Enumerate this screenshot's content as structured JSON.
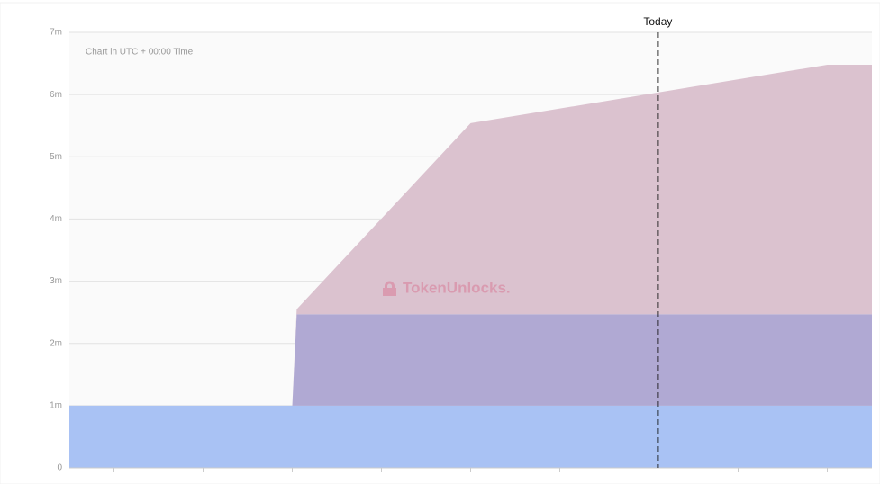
{
  "chart_data": {
    "type": "stacked-area",
    "subtitle": "Chart in UTC + 00:00 Time",
    "watermark": "TokenUnlocks.",
    "x": [
      0.5,
      3.0,
      3.05,
      5.0,
      9.0,
      9.5
    ],
    "xlim": [
      0.5,
      9.5
    ],
    "xticks": [
      1,
      2,
      3,
      4,
      5,
      6,
      7,
      8,
      9
    ],
    "series": [
      {
        "color": "#a9c2f4",
        "values": [
          1,
          1,
          1,
          1,
          1,
          1
        ]
      },
      {
        "color": "#b0a9d3",
        "values": [
          0,
          0,
          1.47,
          1.47,
          1.47,
          1.47
        ]
      },
      {
        "color": "#dbc2cf",
        "values": [
          0,
          0,
          0.08,
          3.07,
          4.01,
          4.01
        ]
      }
    ],
    "ylim": [
      0,
      7
    ],
    "yticks": [
      0,
      {
        "value": 1,
        "label": "1m"
      },
      {
        "value": 2,
        "label": "2m"
      },
      {
        "value": 3,
        "label": "3m"
      },
      {
        "value": 4,
        "label": "4m"
      },
      {
        "value": 5,
        "label": "5m"
      },
      {
        "value": 6,
        "label": "6m"
      },
      {
        "value": 7,
        "label": "7m"
      }
    ],
    "grid": true,
    "marker": {
      "label": "Today",
      "x": 7.1
    }
  }
}
